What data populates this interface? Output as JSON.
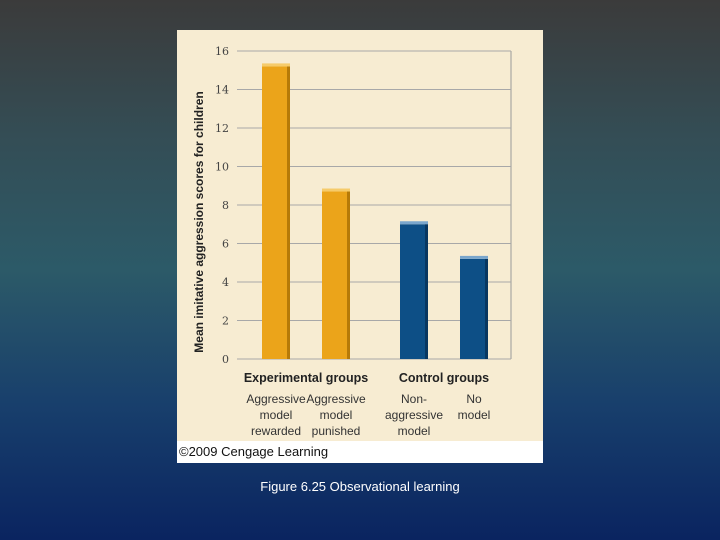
{
  "chart_data": {
    "type": "bar",
    "ylabel": "Mean imitative aggression scores for children",
    "ylim": [
      0,
      16
    ],
    "yticks": [
      "0",
      "2",
      "4",
      "6",
      "8",
      "10",
      "12",
      "14",
      "16"
    ],
    "grid": true,
    "groups": [
      {
        "title": "Experimental groups",
        "color": "#eba41a",
        "categories": [
          {
            "label_lines": [
              "Aggressive",
              "model",
              "rewarded"
            ],
            "value": 15.2
          },
          {
            "label_lines": [
              "Aggressive",
              "model",
              "punished"
            ],
            "value": 8.7
          }
        ]
      },
      {
        "title": "Control groups",
        "color": "#0d4f86",
        "categories": [
          {
            "label_lines": [
              "Non-",
              "aggressive",
              "model"
            ],
            "value": 7.0
          },
          {
            "label_lines": [
              "No",
              "model"
            ],
            "value": 5.2
          }
        ]
      }
    ]
  },
  "credit": "©2009 Cengage Learning",
  "caption": "Figure 6.25 Observational learning"
}
